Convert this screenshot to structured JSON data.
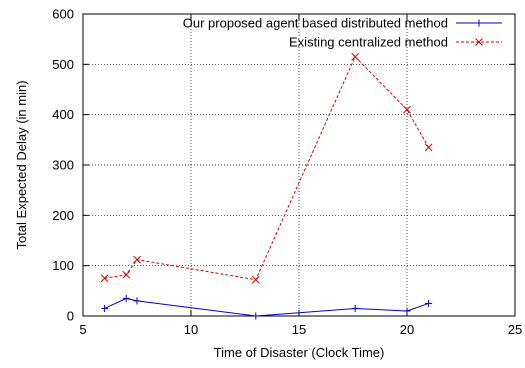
{
  "chart_data": {
    "type": "line",
    "title": "",
    "xlabel": "Time of Disaster (Clock Time)",
    "ylabel": "Total Expected Delay (in min)",
    "xlim": [
      5,
      25
    ],
    "ylim": [
      0,
      600
    ],
    "xticks": [
      "5",
      "10",
      "15",
      "20",
      "25"
    ],
    "yticks": [
      "0",
      "100",
      "200",
      "300",
      "400",
      "500",
      "600"
    ],
    "grid": true,
    "legend_position": "top-right",
    "series": [
      {
        "name": "Our proposed agent based distributed method",
        "color": "#0000cc",
        "marker": "plus",
        "line": "solid",
        "x": [
          6,
          7,
          7.5,
          13,
          17.6,
          20,
          21
        ],
        "y": [
          15,
          35,
          30,
          0,
          15,
          10,
          25
        ]
      },
      {
        "name": "Existing centralized method",
        "color": "#dd0000",
        "marker": "cross",
        "line": "dashed",
        "x": [
          6,
          7,
          7.5,
          13,
          17.6,
          20,
          21
        ],
        "y": [
          75,
          82,
          112,
          72,
          515,
          410,
          335
        ]
      }
    ]
  }
}
